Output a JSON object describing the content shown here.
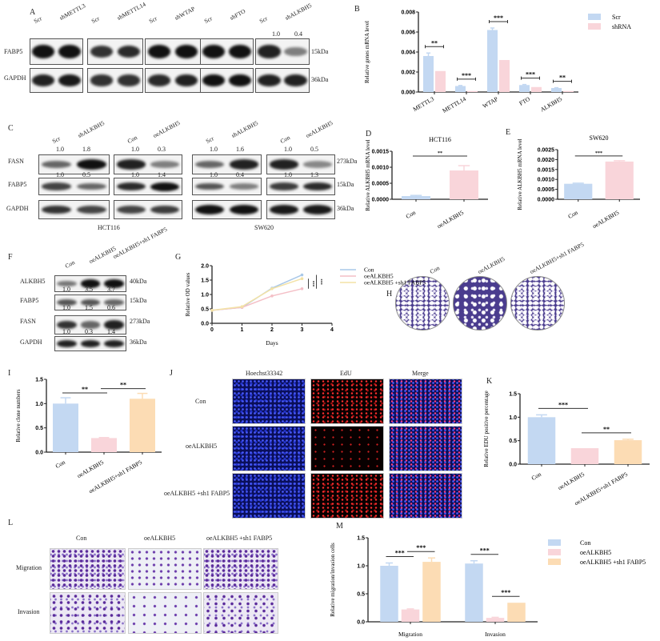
{
  "panel_letters": {
    "A": "A",
    "B": "B",
    "C": "C",
    "D": "D",
    "E": "E",
    "F": "F",
    "G": "G",
    "H": "H",
    "I": "I",
    "J": "J",
    "K": "K",
    "L": "L",
    "M": "M"
  },
  "colors": {
    "blue": "#c3d8f2",
    "pink": "#f9d5da",
    "orange": "#fcdcb4",
    "yellow": "#f6e7b5"
  },
  "panelA": {
    "lanes": [
      "Scr",
      "shMETTL3",
      "Scr",
      "shMETTL14",
      "Scr",
      "shWTAP",
      "Scr",
      "shFTO",
      "Scr",
      "shALKBH5"
    ],
    "quant": [
      "1.0",
      "0.4"
    ],
    "rows": [
      "FABP5",
      "GAPDH"
    ],
    "sizes": [
      "15kDa",
      "36kDa"
    ]
  },
  "panelC": {
    "lanes": [
      "Scr",
      "shALKBH5",
      "Con",
      "oeALKBH5",
      "Scr",
      "shALKBH5",
      "Con",
      "oeALKBH5"
    ],
    "fasn_quant": [
      "1.0",
      "1.8",
      "1.0",
      "0.3",
      "1.0",
      "1.6",
      "1.0",
      "0.5"
    ],
    "fabp5_quant": [
      "1.0",
      "0.5",
      "1.0",
      "1.4",
      "1.0",
      "0.4",
      "1.0",
      "1.3"
    ],
    "rows": [
      "FASN",
      "FABP5",
      "GAPDH"
    ],
    "sizes": [
      "273kDa",
      "15kDa",
      "36kDa"
    ],
    "cell_lines": [
      "HCT116",
      "SW620"
    ]
  },
  "panelF": {
    "lanes": [
      "Con",
      "oeALKBH5",
      "oeALKBH5+sh1 FABP5"
    ],
    "rows": [
      "ALKBH5",
      "FABP5",
      "FASN",
      "GAPDH"
    ],
    "sizes": [
      "40kDa",
      "15kDa",
      "273kDa",
      "36kDa"
    ],
    "quant": [
      [
        "1.0",
        "3.5",
        "3.7"
      ],
      [
        "1.0",
        "1.5",
        "0.6"
      ],
      [
        "1.0",
        "0.3",
        "1.4"
      ]
    ]
  },
  "panelH": {
    "labels": [
      "Con",
      "oeALKBH5",
      "oeALKBH5+sh1 FABP5"
    ]
  },
  "panelJ": {
    "columns": [
      "Hoechst33342",
      "EdU",
      "Merge"
    ],
    "rows": [
      "Con",
      "oeALKBH5",
      "oeALKBH5 +sh1 FABP5"
    ]
  },
  "panelL": {
    "columns": [
      "Con",
      "oeALKBH5",
      "oeALKBH5 +sh1 FABP5"
    ],
    "rows": [
      "Migration",
      "Invasion"
    ]
  },
  "chart_data": [
    {
      "id": "B",
      "type": "bar",
      "ylabel": "Relative genes mRNA level",
      "categories": [
        "METTL3",
        "METTL14",
        "WTAP",
        "FTO",
        "ALKBH5"
      ],
      "ylim": [
        0,
        0.008
      ],
      "yticks": [
        "0.000",
        "0.002",
        "0.004",
        "0.006",
        "0.008"
      ],
      "ytick_values": [
        0,
        0.002,
        0.004,
        0.006,
        0.008
      ],
      "series": [
        {
          "name": "Scr",
          "values": [
            0.0036,
            0.0006,
            0.0062,
            0.0007,
            0.0004
          ],
          "error": [
            0.0003,
            5e-05,
            0.0002,
            5e-05,
            3e-05
          ],
          "color": "#c3d8f2"
        },
        {
          "name": "shRNA",
          "values": [
            0.0021,
            0.0001,
            0.0032,
            0.0005,
            0.0001
          ],
          "error": [
            0,
            0,
            0,
            0,
            0
          ],
          "color": "#f9d5da"
        }
      ],
      "significance": [
        "**",
        "***",
        "***",
        "***",
        "**"
      ],
      "legend": "top-right"
    },
    {
      "id": "D",
      "type": "bar",
      "title": "HCT116",
      "ylabel": "Relative ALKBH5 mRNA level",
      "categories": [
        "Con",
        "oeALKBH5"
      ],
      "ylim": [
        0,
        0.0015
      ],
      "yticks": [
        "0.0000",
        "0.0005",
        "0.0010",
        "0.0015"
      ],
      "ytick_values": [
        0,
        0.0005,
        0.001,
        0.0015
      ],
      "series": [
        {
          "values": [
            0.0001,
            0.0009
          ],
          "error": [
            2e-05,
            0.00015
          ]
        }
      ],
      "bar_colors": [
        "#c3d8f2",
        "#f9d5da"
      ],
      "significance": [
        {
          "between": [
            0,
            1
          ],
          "label": "**"
        }
      ]
    },
    {
      "id": "E",
      "type": "bar",
      "title": "SW620",
      "ylabel": "Relative ALKBH5 mRNA level",
      "categories": [
        "Con",
        "oeALKBH5"
      ],
      "ylim": [
        0,
        0.0025
      ],
      "yticks": [
        "0.0000",
        "0.0005",
        "0.0010",
        "0.0015",
        "0.0020",
        "0.0025"
      ],
      "ytick_values": [
        0,
        0.0005,
        0.001,
        0.0015,
        0.002,
        0.0025
      ],
      "series": [
        {
          "values": [
            0.00078,
            0.0019
          ],
          "error": [
            3e-05,
            4e-05
          ]
        }
      ],
      "bar_colors": [
        "#c3d8f2",
        "#f9d5da"
      ],
      "significance": [
        {
          "between": [
            0,
            1
          ],
          "label": "***"
        }
      ]
    },
    {
      "id": "G",
      "type": "line",
      "xlabel": "Days",
      "ylabel": "Relative  OD values",
      "xlim": [
        0,
        4
      ],
      "ylim": [
        0,
        2
      ],
      "xticks": [
        "0",
        "1",
        "2",
        "3",
        "4"
      ],
      "xtick_values": [
        0,
        1,
        2,
        3,
        4
      ],
      "yticks": [
        "0.0",
        "0.5",
        "1.0",
        "1.5",
        "2.0"
      ],
      "ytick_values": [
        0,
        0.5,
        1,
        1.5,
        2
      ],
      "x": [
        0,
        1,
        2,
        3
      ],
      "series": [
        {
          "name": "Con",
          "values": [
            0.45,
            0.55,
            1.22,
            1.68
          ],
          "color": "#a9c8e8"
        },
        {
          "name": "oeALKBH5",
          "values": [
            0.45,
            0.55,
            0.95,
            1.2
          ],
          "color": "#f4bfc6"
        },
        {
          "name": "oeALKBH5 +sh1 FABP5",
          "values": [
            0.45,
            0.58,
            1.2,
            1.55
          ],
          "color": "#f3e2a6"
        }
      ],
      "significance": [
        "***",
        "***"
      ],
      "legend": "right"
    },
    {
      "id": "I",
      "type": "bar",
      "ylabel": "Relative  clone numbers",
      "categories": [
        "Con",
        "oeALKBH5",
        "oeALKBH5+sh1 FABP5"
      ],
      "ylim": [
        0,
        1.5
      ],
      "yticks": [
        "0.0",
        "0.5",
        "1.0",
        "1.5"
      ],
      "ytick_values": [
        0,
        0.5,
        1,
        1.5
      ],
      "series": [
        {
          "values": [
            1.0,
            0.29,
            1.1
          ],
          "error": [
            0.12,
            0.01,
            0.11
          ]
        }
      ],
      "bar_colors": [
        "#c3d8f2",
        "#f9d5da",
        "#fcdcb4"
      ],
      "significance": [
        {
          "between": [
            0,
            1
          ],
          "label": "**"
        },
        {
          "between": [
            1,
            2
          ],
          "label": "**"
        }
      ]
    },
    {
      "id": "K",
      "type": "bar",
      "ylabel": "Relative  EDU positive percentage",
      "categories": [
        "Con",
        "oeALKBH5",
        "oeALKBH5+sh1 FABP5"
      ],
      "ylim": [
        0,
        1.5
      ],
      "yticks": [
        "0.0",
        "0.5",
        "1.0",
        "1.5"
      ],
      "ytick_values": [
        0,
        0.5,
        1,
        1.5
      ],
      "series": [
        {
          "values": [
            1.0,
            0.34,
            0.51
          ],
          "error": [
            0.05,
            0,
            0.02
          ]
        }
      ],
      "bar_colors": [
        "#c3d8f2",
        "#f9d5da",
        "#fcdcb4"
      ],
      "significance": [
        {
          "between": [
            0,
            1
          ],
          "label": "***"
        },
        {
          "between": [
            1,
            2
          ],
          "label": "**"
        }
      ]
    },
    {
      "id": "M",
      "type": "bar",
      "ylabel": "Relative  migration/invasion cells",
      "categories": [
        "Migration",
        "Invasion"
      ],
      "ylim": [
        0,
        1.5
      ],
      "yticks": [
        "0.0",
        "0.5",
        "1.0",
        "1.5"
      ],
      "ytick_values": [
        0,
        0.5,
        1,
        1.5
      ],
      "series": [
        {
          "name": "Con",
          "values": [
            1.0,
            1.04
          ],
          "error": [
            0.05,
            0.05
          ],
          "color": "#c3d8f2"
        },
        {
          "name": "oeALKBH5",
          "values": [
            0.22,
            0.07
          ],
          "error": [
            0.01,
            0.01
          ],
          "color": "#f9d5da"
        },
        {
          "name": "oeALKBH5 +sh1 FABP5",
          "values": [
            1.07,
            0.34
          ],
          "error": [
            0.07,
            0
          ],
          "color": "#fcdcb4"
        }
      ],
      "significance": [
        {
          "category": 0,
          "between": [
            0,
            1
          ],
          "label": "***"
        },
        {
          "category": 0,
          "between": [
            1,
            2
          ],
          "label": "***"
        },
        {
          "category": 1,
          "between": [
            0,
            1
          ],
          "label": "***"
        },
        {
          "category": 1,
          "between": [
            1,
            2
          ],
          "label": "***"
        }
      ],
      "legend": "top-right"
    }
  ]
}
